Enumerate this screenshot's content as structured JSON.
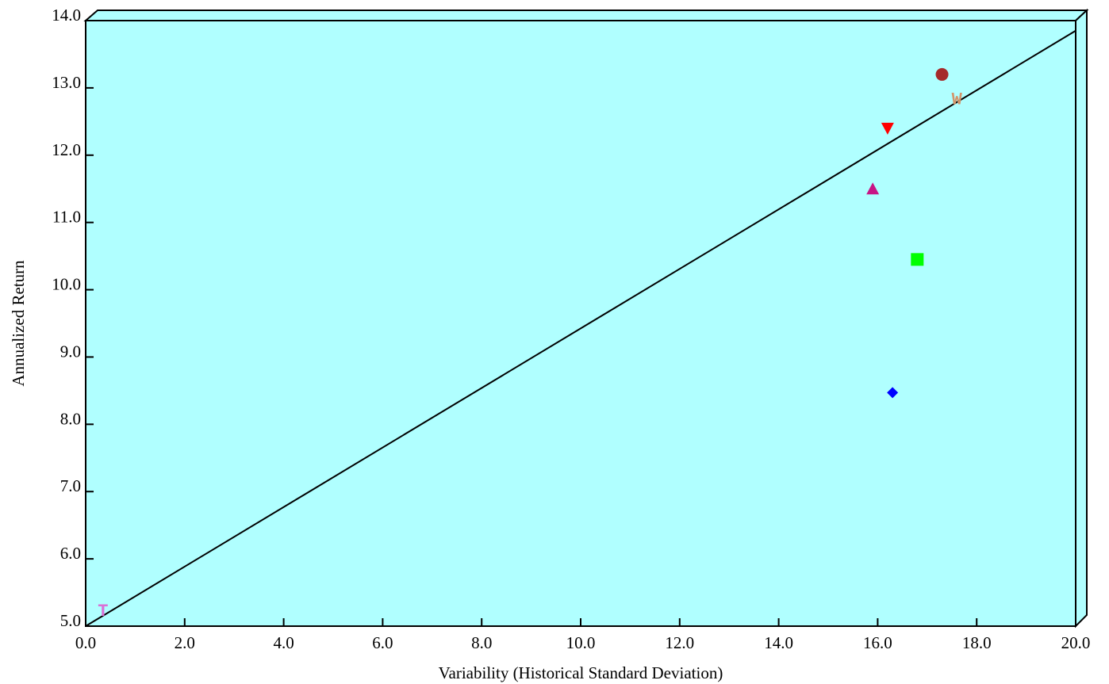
{
  "chart_data": {
    "type": "scatter",
    "title": "",
    "xlabel": "Variability (Historical Standard Deviation)",
    "ylabel": "Annualized Return",
    "xlim": [
      0,
      20
    ],
    "ylim": [
      5,
      14
    ],
    "x_ticks": [
      "0.0",
      "2.0",
      "4.0",
      "6.0",
      "8.0",
      "10.0",
      "12.0",
      "14.0",
      "16.0",
      "18.0",
      "20.0"
    ],
    "y_ticks": [
      "5.0",
      "6.0",
      "7.0",
      "8.0",
      "9.0",
      "10.0",
      "11.0",
      "12.0",
      "13.0",
      "14.0"
    ],
    "grid": false,
    "legend": "none",
    "background_color": "#b0ffff",
    "line": {
      "x": [
        0,
        20
      ],
      "y": [
        5.0,
        13.85
      ],
      "color": "#000000"
    },
    "points": [
      {
        "marker": "circle",
        "x": 17.3,
        "y": 13.2,
        "color": "#a52a2a"
      },
      {
        "marker": "letter",
        "label": "W",
        "x": 17.6,
        "y": 12.85,
        "color": "#d2956b"
      },
      {
        "marker": "triangle-down",
        "x": 16.2,
        "y": 12.4,
        "color": "#ff0000"
      },
      {
        "marker": "triangle-up",
        "x": 15.9,
        "y": 11.5,
        "color": "#c71585"
      },
      {
        "marker": "square",
        "x": 16.8,
        "y": 10.45,
        "color": "#00ff00"
      },
      {
        "marker": "diamond",
        "x": 16.3,
        "y": 8.47,
        "color": "#0000ff"
      },
      {
        "marker": "letter",
        "label": "T",
        "x": 0.35,
        "y": 5.25,
        "color": "#da70d6"
      }
    ]
  }
}
